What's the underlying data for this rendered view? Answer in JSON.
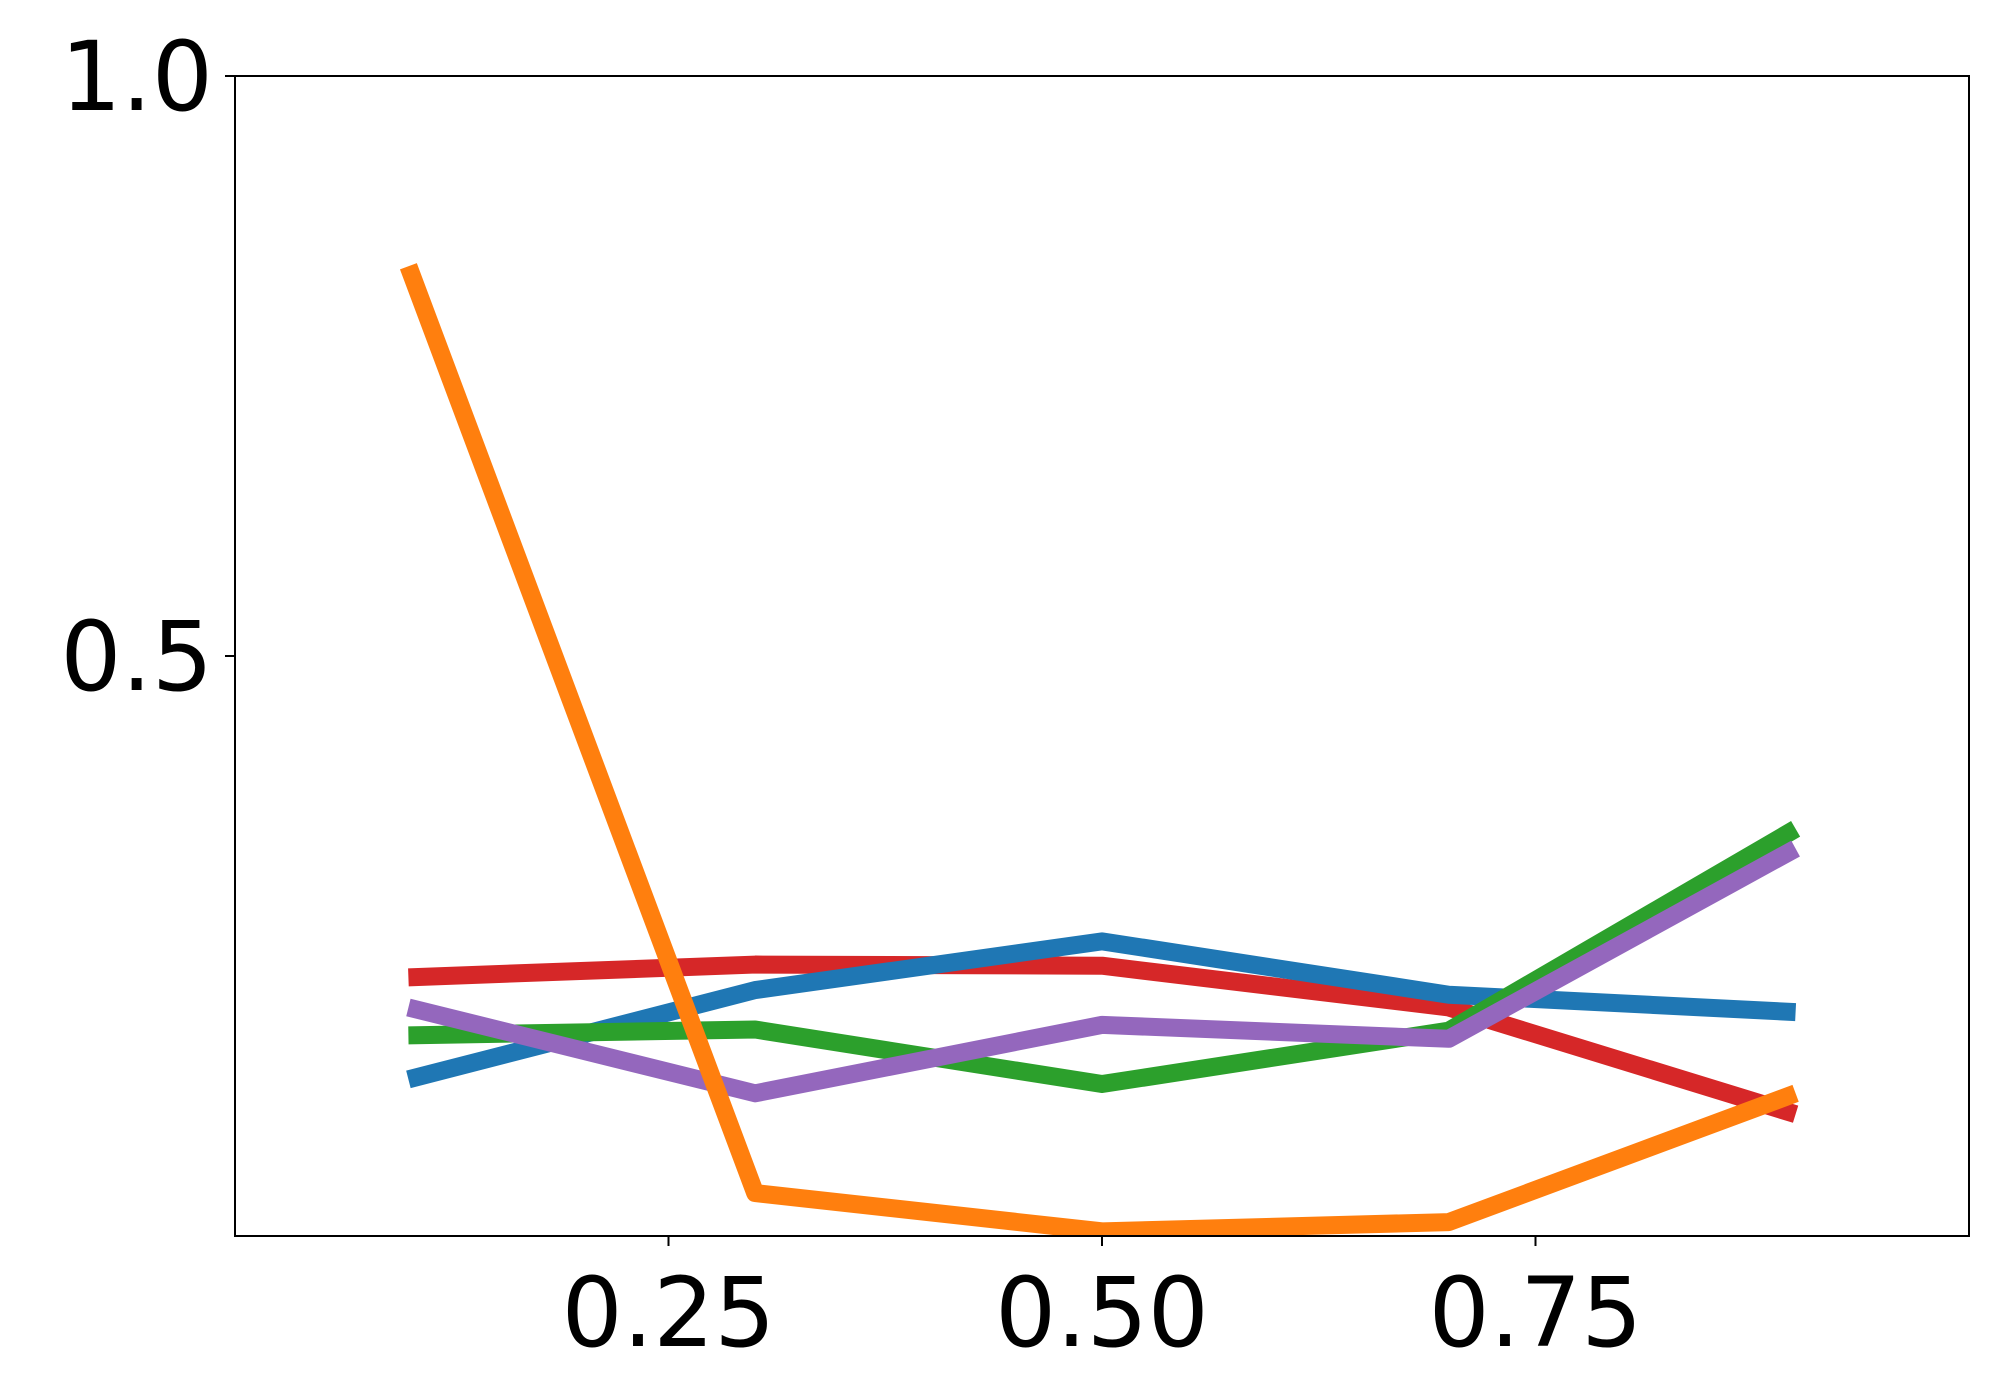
{
  "chart_data": {
    "type": "line",
    "x": [
      0.1,
      0.3,
      0.5,
      0.7,
      0.9
    ],
    "series": [
      {
        "color": "#d62728",
        "values": [
          0.223,
          0.234,
          0.233,
          0.197,
          0.105
        ]
      },
      {
        "color": "#1f77b4",
        "values": [
          0.135,
          0.212,
          0.254,
          0.208,
          0.193
        ]
      },
      {
        "color": "#2ca02c",
        "values": [
          0.173,
          0.178,
          0.131,
          0.177,
          0.351
        ]
      },
      {
        "color": "#9467bd",
        "values": [
          0.197,
          0.123,
          0.182,
          0.17,
          0.334
        ]
      },
      {
        "color": "#ff7f0e",
        "values": [
          0.836,
          0.037,
          0.004,
          0.012,
          0.123
        ]
      }
    ],
    "xlim": [
      0,
      1
    ],
    "ylim": [
      0,
      1
    ],
    "xticks": [
      0.25,
      {
        "value": 0.5,
        "label": "0.50"
      },
      0.75
    ],
    "yticks": [
      0.5,
      {
        "value": 1,
        "label": "1.0"
      }
    ],
    "grid": false
  }
}
